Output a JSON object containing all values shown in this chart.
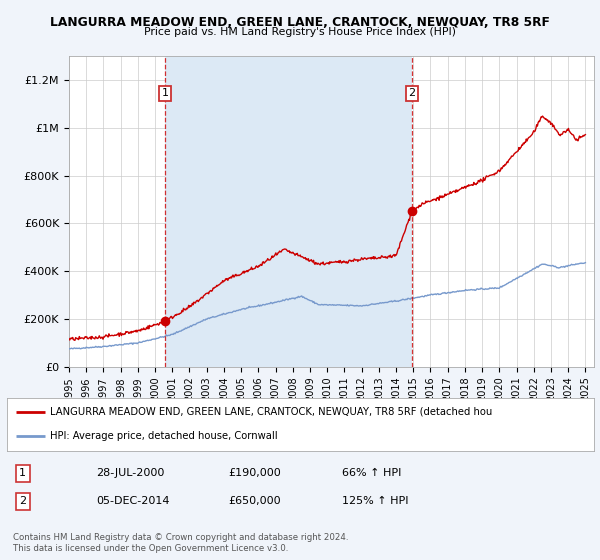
{
  "title": "LANGURRA MEADOW END, GREEN LANE, CRANTOCK, NEWQUAY, TR8 5RF",
  "subtitle": "Price paid vs. HM Land Registry's House Price Index (HPI)",
  "bg_color": "#f0f4fa",
  "plot_bg_color": "#ffffff",
  "grid_color": "#cccccc",
  "red_color": "#cc0000",
  "blue_color": "#7799cc",
  "marker1_date": 2000.57,
  "marker1_value": 190000,
  "marker1_label": "1",
  "marker2_date": 2014.92,
  "marker2_value": 650000,
  "marker2_label": "2",
  "vline1_date": 2000.57,
  "vline2_date": 2014.92,
  "span_color": "#dce9f5",
  "ylim_max": 1300000,
  "ylabel_ticks": [
    0,
    200000,
    400000,
    600000,
    800000,
    1000000,
    1200000
  ],
  "ylabel_labels": [
    "£0",
    "£200K",
    "£400K",
    "£600K",
    "£800K",
    "£1M",
    "£1.2M"
  ],
  "legend_line1": "LANGURRA MEADOW END, GREEN LANE, CRANTOCK, NEWQUAY, TR8 5RF (detached hou",
  "legend_line2": "HPI: Average price, detached house, Cornwall",
  "note1_label": "1",
  "note1_date": "28-JUL-2000",
  "note1_price": "£190,000",
  "note1_pct": "66% ↑ HPI",
  "note2_label": "2",
  "note2_date": "05-DEC-2014",
  "note2_price": "£650,000",
  "note2_pct": "125% ↑ HPI",
  "footer": "Contains HM Land Registry data © Crown copyright and database right 2024.\nThis data is licensed under the Open Government Licence v3.0."
}
